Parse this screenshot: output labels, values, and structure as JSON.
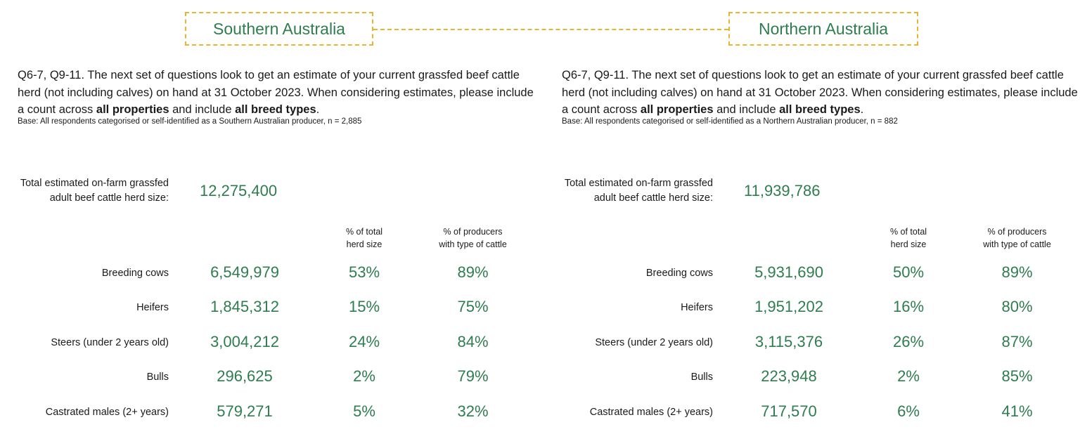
{
  "header": {
    "south_title": "Southern Australia",
    "north_title": "Northern Australia"
  },
  "panels": [
    {
      "question_pre": "Q6-7, Q9-11. The next set of questions look to get an estimate of your current grassfed beef cattle herd (not including calves) on hand at 31 October 2023. When considering estimates, please include a count across ",
      "question_bold1": "all properties",
      "question_mid": " and include ",
      "question_bold2": "all breed types",
      "question_post": ".",
      "base": "Base: All respondents categorised or self-identified as a Southern Australian producer, n = 2,885",
      "total_label_line1": "Total estimated on-farm grassfed",
      "total_label_line2": "adult beef cattle herd size:",
      "total_value": "12,275,400",
      "col_pct_line1": "% of total",
      "col_pct_line2": "herd size",
      "col_prod_line1": "% of producers",
      "col_prod_line2": "with type of cattle",
      "rows": [
        {
          "label": "Breeding cows",
          "value": "6,549,979",
          "pct": "53%",
          "producers": "89%"
        },
        {
          "label": "Heifers",
          "value": "1,845,312",
          "pct": "15%",
          "producers": "75%"
        },
        {
          "label": "Steers (under 2 years old)",
          "value": "3,004,212",
          "pct": "24%",
          "producers": "84%"
        },
        {
          "label": "Bulls",
          "value": "296,625",
          "pct": "2%",
          "producers": "79%"
        },
        {
          "label": "Castrated males (2+ years)",
          "value": "579,271",
          "pct": "5%",
          "producers": "32%"
        }
      ]
    },
    {
      "question_pre": "Q6-7, Q9-11. The next set of questions look to get an estimate of your current grassfed beef cattle herd (not including calves) on hand at 31 October 2023. When considering estimates, please include a count across ",
      "question_bold1": "all properties",
      "question_mid": " and include ",
      "question_bold2": "all breed types",
      "question_post": ".",
      "base": "Base: All respondents categorised or self-identified as a Northern Australian producer, n = 882",
      "total_label_line1": "Total estimated on-farm grassfed",
      "total_label_line2": "adult beef cattle herd size:",
      "total_value": "11,939,786",
      "col_pct_line1": "% of total",
      "col_pct_line2": "herd size",
      "col_prod_line1": "% of producers",
      "col_prod_line2": "with type of cattle",
      "rows": [
        {
          "label": "Breeding cows",
          "value": "5,931,690",
          "pct": "50%",
          "producers": "89%"
        },
        {
          "label": "Heifers",
          "value": "1,951,202",
          "pct": "16%",
          "producers": "80%"
        },
        {
          "label": "Steers (under 2 years old)",
          "value": "3,115,376",
          "pct": "26%",
          "producers": "87%"
        },
        {
          "label": "Bulls",
          "value": "223,948",
          "pct": "2%",
          "producers": "85%"
        },
        {
          "label": "Castrated males (2+ years)",
          "value": "717,570",
          "pct": "6%",
          "producers": "41%"
        }
      ]
    }
  ],
  "colors": {
    "accent_green": "#2e7d4f",
    "dashed_gold": "#e7b52e"
  }
}
